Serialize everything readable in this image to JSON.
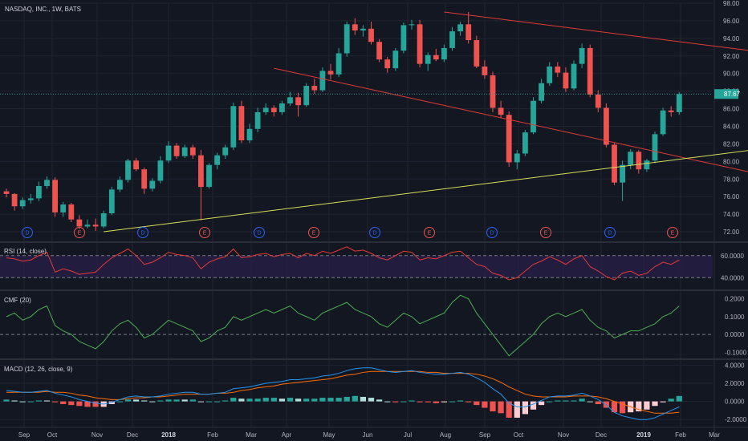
{
  "chart": {
    "symbol_title": "NASDAQ, INC., 1W, BATS",
    "last_price_label": "87.67",
    "price_ticks": [
      "98.00",
      "96.00",
      "94.00",
      "92.00",
      "90.00",
      "88.00",
      "86.00",
      "84.00",
      "82.00",
      "80.00",
      "78.00",
      "76.00",
      "74.00",
      "72.00"
    ],
    "time_labels": [
      "Sep",
      "Oct",
      "Nov",
      "Dec",
      "2018",
      "Feb",
      "Mar",
      "Apr",
      "May",
      "Jun",
      "Jul",
      "Aug",
      "Sep",
      "Oct",
      "Nov",
      "Dec",
      "2019",
      "Feb",
      "Mar"
    ],
    "events": [
      "D",
      "E",
      "D",
      "E",
      "D",
      "E",
      "D",
      "E",
      "D",
      "E",
      "D",
      "E"
    ],
    "rsi": {
      "title": "RSI (14, close)",
      "ticks": [
        "60.0000",
        "40.0000"
      ]
    },
    "cmf": {
      "title": "CMF (20)",
      "ticks": [
        "0.2000",
        "0.1000",
        "0.0000",
        "-0.1000"
      ]
    },
    "macd": {
      "title": "MACD (12, 26, close, 9)",
      "ticks": [
        "4.0000",
        "2.0000",
        "0.0000",
        "-2.0000"
      ]
    },
    "colors": {
      "up": "#26a69a",
      "down": "#ef5350",
      "bg": "#131722",
      "trend_red": "#e53935",
      "trend_yellow": "#d4e157",
      "rsi_line": "#e53935",
      "cmf_line": "#4caf50",
      "macd_line": "#2196f3",
      "signal_line": "#ff6d00"
    }
  },
  "chart_data": {
    "type": "candlestick",
    "title": "NASDAQ, INC., 1W, BATS",
    "ylim": [
      71,
      98
    ],
    "last_price": 87.67,
    "candles": [
      [
        76.6,
        76.9,
        75.9,
        76.3
      ],
      [
        76.3,
        76.4,
        74.4,
        74.9
      ],
      [
        74.9,
        75.9,
        74.6,
        75.6
      ],
      [
        75.6,
        76.3,
        75.2,
        75.8
      ],
      [
        75.8,
        77.7,
        75.5,
        77.2
      ],
      [
        77.2,
        78.3,
        76.9,
        77.9
      ],
      [
        77.9,
        78.2,
        73.7,
        74.2
      ],
      [
        74.2,
        75.4,
        73.7,
        75.1
      ],
      [
        75.1,
        75.3,
        73.1,
        73.4
      ],
      [
        73.4,
        73.9,
        72.3,
        72.6
      ],
      [
        72.6,
        73.4,
        72.4,
        72.8
      ],
      [
        72.8,
        73.5,
        72.1,
        72.6
      ],
      [
        72.6,
        74.4,
        72.4,
        74.1
      ],
      [
        74.1,
        77.1,
        73.9,
        76.8
      ],
      [
        76.8,
        78.3,
        76.5,
        77.9
      ],
      [
        77.9,
        80.3,
        77.6,
        80.1
      ],
      [
        80.1,
        80.4,
        78.9,
        79.1
      ],
      [
        79.1,
        79.3,
        76.3,
        76.9
      ],
      [
        76.9,
        78.1,
        76.6,
        77.8
      ],
      [
        77.8,
        80.6,
        77.5,
        80.1
      ],
      [
        80.1,
        82.3,
        79.8,
        81.8
      ],
      [
        81.8,
        82.1,
        80.3,
        80.6
      ],
      [
        80.6,
        81.9,
        80.4,
        81.6
      ],
      [
        81.6,
        81.9,
        80.3,
        80.7
      ],
      [
        80.7,
        81.3,
        73.3,
        77.1
      ],
      [
        77.1,
        79.8,
        76.9,
        79.6
      ],
      [
        79.6,
        81.0,
        79.1,
        80.7
      ],
      [
        80.7,
        81.9,
        80.3,
        81.6
      ],
      [
        81.6,
        86.7,
        81.3,
        86.3
      ],
      [
        86.3,
        86.9,
        82.1,
        82.4
      ],
      [
        82.4,
        84.3,
        82.1,
        83.7
      ],
      [
        83.7,
        86.1,
        83.3,
        85.6
      ],
      [
        85.6,
        86.6,
        85.3,
        86.1
      ],
      [
        86.1,
        86.4,
        85.1,
        85.6
      ],
      [
        85.6,
        86.9,
        85.3,
        86.6
      ],
      [
        86.6,
        87.9,
        86.3,
        87.3
      ],
      [
        87.3,
        87.8,
        85.1,
        86.4
      ],
      [
        86.4,
        88.9,
        86.2,
        88.6
      ],
      [
        88.6,
        89.4,
        87.7,
        88.1
      ],
      [
        88.1,
        90.7,
        87.9,
        90.3
      ],
      [
        90.3,
        91.1,
        89.3,
        89.9
      ],
      [
        89.9,
        92.9,
        89.6,
        92.3
      ],
      [
        92.3,
        95.9,
        91.9,
        95.6
      ],
      [
        95.6,
        96.3,
        94.4,
        94.9
      ],
      [
        94.9,
        95.5,
        94.2,
        95.1
      ],
      [
        95.1,
        95.9,
        93.3,
        93.6
      ],
      [
        93.6,
        93.9,
        91.3,
        91.6
      ],
      [
        91.6,
        91.9,
        90.1,
        90.6
      ],
      [
        90.6,
        92.9,
        90.3,
        92.6
      ],
      [
        92.6,
        95.8,
        92.3,
        95.5
      ],
      [
        95.5,
        96.1,
        95.0,
        95.6
      ],
      [
        95.6,
        96.1,
        90.7,
        91.1
      ],
      [
        91.1,
        92.4,
        90.3,
        92.1
      ],
      [
        92.1,
        92.8,
        91.4,
        91.6
      ],
      [
        91.6,
        93.3,
        91.3,
        92.9
      ],
      [
        92.9,
        95.3,
        92.6,
        94.8
      ],
      [
        94.8,
        95.9,
        94.3,
        95.6
      ],
      [
        95.6,
        97.0,
        93.4,
        93.8
      ],
      [
        93.8,
        94.3,
        90.6,
        90.8
      ],
      [
        90.8,
        91.5,
        89.4,
        89.8
      ],
      [
        89.8,
        90.2,
        85.6,
        86.1
      ],
      [
        86.1,
        86.9,
        84.9,
        85.3
      ],
      [
        85.3,
        85.7,
        79.4,
        79.9
      ],
      [
        79.9,
        81.3,
        79.1,
        80.9
      ],
      [
        80.9,
        83.6,
        80.6,
        83.3
      ],
      [
        83.3,
        87.3,
        83.1,
        86.9
      ],
      [
        86.9,
        89.4,
        86.6,
        88.9
      ],
      [
        88.9,
        91.3,
        88.6,
        90.8
      ],
      [
        90.8,
        91.3,
        89.6,
        90.1
      ],
      [
        90.1,
        90.7,
        87.9,
        88.3
      ],
      [
        88.3,
        91.5,
        88.1,
        91.1
      ],
      [
        91.1,
        93.4,
        90.6,
        92.9
      ],
      [
        92.9,
        93.3,
        87.3,
        87.6
      ],
      [
        87.6,
        88.1,
        85.6,
        86.1
      ],
      [
        86.1,
        86.6,
        81.6,
        81.9
      ],
      [
        81.9,
        82.1,
        77.3,
        77.6
      ],
      [
        77.6,
        80.1,
        75.5,
        79.6
      ],
      [
        79.6,
        81.4,
        79.1,
        81.1
      ],
      [
        81.1,
        81.3,
        78.6,
        79.1
      ],
      [
        79.1,
        80.3,
        78.8,
        80.1
      ],
      [
        80.1,
        83.4,
        79.8,
        83.1
      ],
      [
        83.1,
        86.1,
        82.9,
        85.8
      ],
      [
        85.8,
        86.3,
        85.1,
        85.6
      ],
      [
        85.6,
        87.9,
        85.3,
        87.67
      ]
    ],
    "trendlines": [
      {
        "color": "red",
        "from": [
          54,
          97.0
        ],
        "to": [
          115,
          89.9
        ]
      },
      {
        "color": "red",
        "from": [
          33,
          90.6
        ],
        "to": [
          115,
          74.1
        ]
      },
      {
        "color": "yellow",
        "from": [
          12,
          72.0
        ],
        "to": [
          117,
          84.2
        ]
      }
    ],
    "rsi": [
      58,
      57,
      55,
      56,
      60,
      63,
      45,
      48,
      46,
      43,
      44,
      45,
      52,
      58,
      62,
      66,
      60,
      52,
      54,
      58,
      63,
      61,
      60,
      58,
      48,
      54,
      57,
      59,
      66,
      58,
      59,
      61,
      62,
      59,
      61,
      62,
      58,
      62,
      60,
      64,
      62,
      65,
      68,
      64,
      65,
      62,
      58,
      56,
      60,
      64,
      63,
      56,
      58,
      57,
      60,
      63,
      64,
      58,
      52,
      50,
      44,
      42,
      38,
      40,
      46,
      52,
      55,
      59,
      56,
      52,
      57,
      60,
      50,
      46,
      41,
      38,
      44,
      46,
      42,
      44,
      50,
      54,
      52,
      56
    ],
    "cmf": [
      0.1,
      0.12,
      0.08,
      0.1,
      0.14,
      0.16,
      0.05,
      0.02,
      0.0,
      -0.04,
      -0.06,
      -0.08,
      -0.04,
      0.02,
      0.06,
      0.08,
      0.04,
      -0.02,
      0.0,
      0.04,
      0.08,
      0.06,
      0.04,
      0.02,
      -0.04,
      -0.02,
      0.02,
      0.04,
      0.1,
      0.08,
      0.1,
      0.12,
      0.14,
      0.12,
      0.14,
      0.16,
      0.12,
      0.1,
      0.08,
      0.12,
      0.14,
      0.16,
      0.18,
      0.14,
      0.12,
      0.1,
      0.06,
      0.04,
      0.08,
      0.12,
      0.1,
      0.06,
      0.08,
      0.1,
      0.12,
      0.18,
      0.22,
      0.2,
      0.12,
      0.06,
      0.0,
      -0.06,
      -0.12,
      -0.08,
      -0.04,
      0.0,
      0.06,
      0.1,
      0.12,
      0.1,
      0.12,
      0.14,
      0.08,
      0.04,
      0.02,
      -0.02,
      0.0,
      0.02,
      0.02,
      0.04,
      0.06,
      0.1,
      0.12,
      0.16
    ],
    "macd": [
      1.2,
      1.1,
      1.0,
      1.0,
      1.1,
      1.2,
      0.9,
      0.7,
      0.5,
      0.2,
      0.0,
      -0.2,
      -0.3,
      -0.1,
      0.2,
      0.5,
      0.6,
      0.5,
      0.5,
      0.6,
      0.8,
      0.9,
      1.0,
      1.0,
      0.8,
      0.8,
      0.9,
      1.0,
      1.4,
      1.5,
      1.6,
      1.8,
      2.0,
      2.1,
      2.2,
      2.4,
      2.4,
      2.5,
      2.6,
      2.8,
      2.9,
      3.1,
      3.4,
      3.6,
      3.7,
      3.7,
      3.5,
      3.3,
      3.2,
      3.3,
      3.4,
      3.2,
      3.1,
      3.0,
      3.0,
      3.1,
      3.2,
      3.0,
      2.6,
      2.1,
      1.4,
      0.8,
      -0.2,
      -0.6,
      -0.6,
      -0.3,
      0.1,
      0.5,
      0.6,
      0.6,
      0.7,
      0.9,
      0.6,
      0.2,
      -0.4,
      -1.2,
      -1.6,
      -1.8,
      -2.0,
      -2.0,
      -1.8,
      -1.4,
      -1.0,
      -0.6
    ],
    "signal": [
      1.0,
      1.0,
      1.0,
      1.0,
      1.0,
      1.1,
      1.0,
      1.0,
      0.9,
      0.7,
      0.6,
      0.4,
      0.3,
      0.2,
      0.2,
      0.3,
      0.4,
      0.4,
      0.5,
      0.5,
      0.6,
      0.7,
      0.8,
      0.8,
      0.8,
      0.8,
      0.9,
      0.9,
      1.0,
      1.2,
      1.3,
      1.5,
      1.6,
      1.7,
      1.9,
      2.0,
      2.1,
      2.2,
      2.3,
      2.4,
      2.5,
      2.7,
      2.9,
      3.0,
      3.2,
      3.3,
      3.3,
      3.3,
      3.3,
      3.3,
      3.3,
      3.3,
      3.2,
      3.2,
      3.1,
      3.1,
      3.1,
      3.1,
      3.0,
      2.8,
      2.5,
      2.1,
      1.6,
      1.2,
      0.8,
      0.6,
      0.5,
      0.5,
      0.5,
      0.5,
      0.6,
      0.6,
      0.6,
      0.5,
      0.3,
      0.0,
      -0.3,
      -0.6,
      -0.9,
      -1.1,
      -1.3,
      -1.3,
      -1.3,
      -1.2
    ]
  }
}
